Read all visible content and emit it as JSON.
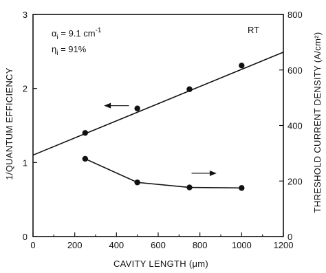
{
  "chart_data": {
    "type": "scatter",
    "xlabel": "CAVITY LENGTH (μm)",
    "ylabel_left": "1/QUANTUM EFFICIENCY",
    "ylabel_right": "THRESHOLD CURRENT DENSITY (A/cm²)",
    "xlim": [
      0,
      1200
    ],
    "ylim_left": [
      0,
      3
    ],
    "ylim_right": [
      0,
      800
    ],
    "x_ticks": [
      0,
      200,
      400,
      600,
      800,
      1000,
      1200
    ],
    "y_ticks_left": [
      0,
      1,
      2,
      3
    ],
    "y_ticks_right": [
      0,
      200,
      400,
      600,
      800
    ],
    "grid": false,
    "annotations": {
      "alpha_sym": "α",
      "alpha_sub": "i",
      "alpha_eq": " = 9.1 cm",
      "alpha_exp": "-1",
      "eta_sym": "η",
      "eta_sub": "i",
      "eta_eq": " = 91%",
      "rt": "RT"
    },
    "series": [
      {
        "axis": "left",
        "fit_line": {
          "x": [
            0,
            1200
          ],
          "y": [
            1.1,
            2.49
          ]
        },
        "points": [
          {
            "x": 250,
            "y": 1.4
          },
          {
            "x": 500,
            "y": 1.73
          },
          {
            "x": 750,
            "y": 1.99
          },
          {
            "x": 1000,
            "y": 2.31
          }
        ],
        "indicator_arrow": "left"
      },
      {
        "axis": "right",
        "points": [
          {
            "x": 250,
            "y": 280
          },
          {
            "x": 500,
            "y": 195
          },
          {
            "x": 750,
            "y": 177
          },
          {
            "x": 1000,
            "y": 175
          }
        ],
        "indicator_arrow": "right"
      }
    ]
  }
}
